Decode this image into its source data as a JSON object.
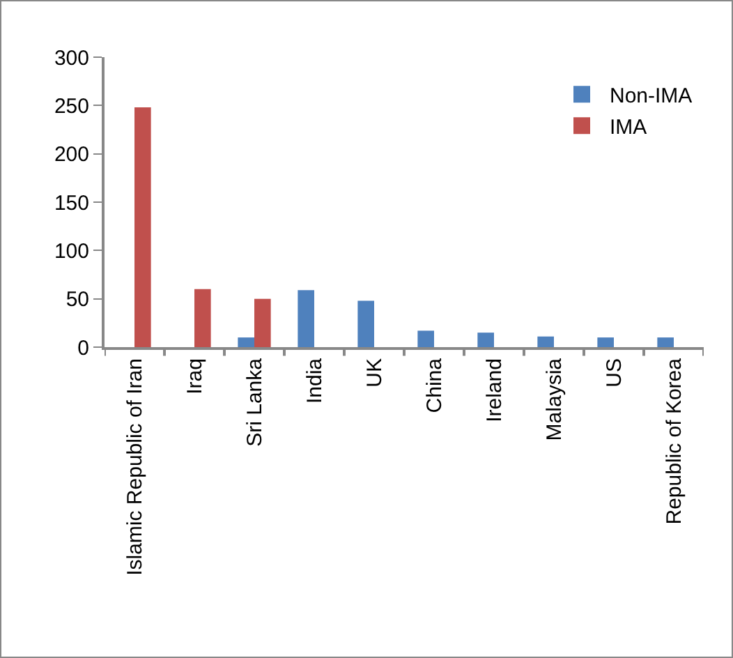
{
  "chart_data": {
    "type": "bar",
    "categories": [
      "Islamic Republic of Iran",
      "Iraq",
      "Sri Lanka",
      "India",
      "UK",
      "China",
      "Ireland",
      "Malaysia",
      "US",
      "Republic of Korea"
    ],
    "series": [
      {
        "name": "Non-IMA",
        "color": "#4f81bd",
        "values": [
          null,
          null,
          10,
          59,
          48,
          17,
          15,
          11,
          10,
          10
        ]
      },
      {
        "name": "IMA",
        "color": "#c0504d",
        "values": [
          248,
          60,
          50,
          null,
          null,
          null,
          null,
          null,
          null,
          null
        ]
      }
    ],
    "ylim": [
      0,
      300
    ],
    "yticks": [
      0,
      50,
      100,
      150,
      200,
      250,
      300
    ],
    "grid": false,
    "legend": "top right"
  }
}
